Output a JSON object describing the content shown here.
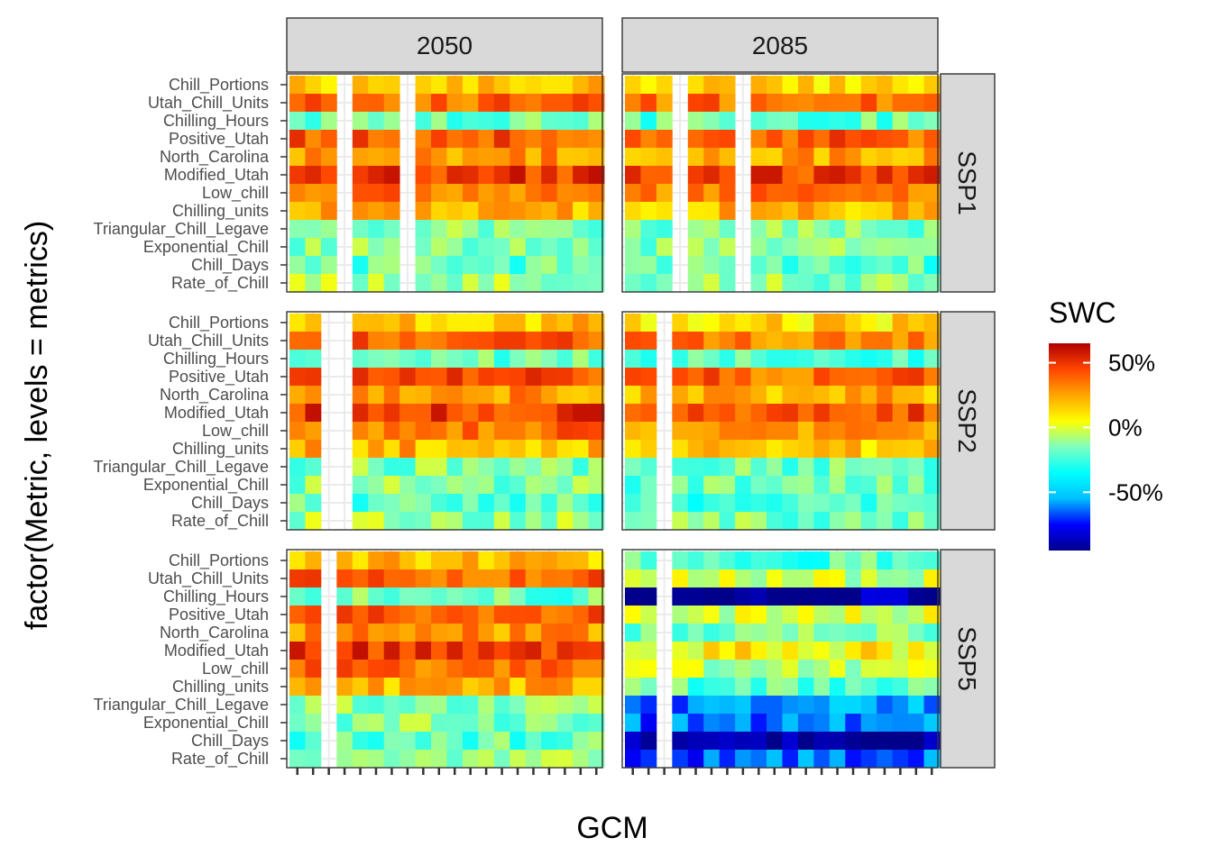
{
  "chart_data": {
    "type": "heatmap",
    "xlabel": "GCM",
    "ylabel": "factor(Metric, levels = metrics)",
    "col_facets": [
      "2050",
      "2085"
    ],
    "row_facets": [
      "SSP1",
      "SSP2",
      "SSP5"
    ],
    "metrics": [
      "Chill_Portions",
      "Utah_Chill_Units",
      "Chilling_Hours",
      "Positive_Utah",
      "North_Carolina",
      "Modified_Utah",
      "Low_chill",
      "Chilling_units",
      "Triangular_Chill_Legave",
      "Exponential_Chill",
      "Chill_Days",
      "Rate_of_Chill"
    ],
    "metric_base": [
      18,
      38,
      -18,
      42,
      28,
      48,
      36,
      22,
      -14,
      -14,
      -20,
      -10
    ],
    "gcm_count": 20,
    "x_tick_labels_note": "x tick labels overlap and are illegible in the source image",
    "missing_columns": {
      "2050|SSP1": [
        3,
        7
      ],
      "2085|SSP1": [
        3,
        7
      ],
      "2050|SSP2": [
        2,
        3
      ],
      "2085|SSP2": [
        2
      ],
      "2050|SSP5": [
        2
      ],
      "2085|SSP5": [
        2
      ]
    },
    "panel_offsets": {
      "2050|SSP1": 0,
      "2085|SSP1": -2,
      "2050|SSP2": 0,
      "2085|SSP2": -5,
      "2050|SSP5": 0,
      "2085|SSP5": -45
    },
    "panel_extra": {
      "2085|SSP5": [
        5,
        3,
        -30,
        3,
        2,
        5,
        3,
        2,
        0,
        -5,
        -30,
        -10
      ]
    },
    "legend": {
      "title": "SWC",
      "labels": [
        "50%",
        "0%",
        "-50%"
      ],
      "label_values": [
        50,
        0,
        -50
      ],
      "range": [
        -95,
        65
      ],
      "colors": [
        "#00008b",
        "#0000ff",
        "#00bfff",
        "#00ffff",
        "#7fffbf",
        "#ffff00",
        "#ffa500",
        "#ff4500",
        "#b00000"
      ]
    }
  }
}
